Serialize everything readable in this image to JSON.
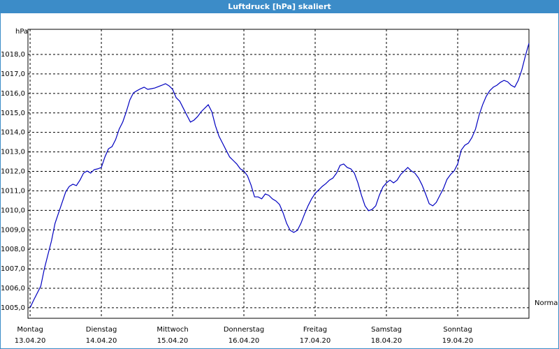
{
  "window_title": "Luftdruck [hPa] skaliert",
  "chart_data": {
    "type": "line",
    "y_label": "hPa",
    "xlim": [
      -0.03,
      7.0
    ],
    "xticks": [
      {
        "value": 0,
        "label": "Montag"
      },
      {
        "value": 1,
        "label": "Dienstag"
      },
      {
        "value": 2,
        "label": "Mittwoch"
      },
      {
        "value": 3,
        "label": "Donnerstag"
      },
      {
        "value": 4,
        "label": "Freitag"
      },
      {
        "value": 5,
        "label": "Samstag"
      },
      {
        "value": 6,
        "label": "Sonntag"
      }
    ],
    "xtick_dates": [
      "13.04.20",
      "14.04.20",
      "15.04.20",
      "16.04.20",
      "17.04.20",
      "18.04.20",
      "19.04.20"
    ],
    "ylim": [
      1004.46,
      1019.29
    ],
    "yticks": [
      {
        "value": 1005,
        "label": "1005,0"
      },
      {
        "value": 1006,
        "label": "1006,0"
      },
      {
        "value": 1007,
        "label": "1007,0"
      },
      {
        "value": 1008,
        "label": "1008,0"
      },
      {
        "value": 1009,
        "label": "1009,0"
      },
      {
        "value": 1010,
        "label": "1010,0"
      },
      {
        "value": 1011,
        "label": "1011,0"
      },
      {
        "value": 1012,
        "label": "1012,0"
      },
      {
        "value": 1013,
        "label": "1013,0"
      },
      {
        "value": 1014,
        "label": "1014,0"
      },
      {
        "value": 1015,
        "label": "1015,0"
      },
      {
        "value": 1016,
        "label": "1016,0"
      },
      {
        "value": 1017,
        "label": "1017,0"
      },
      {
        "value": 1018,
        "label": "1018,0"
      }
    ],
    "grid": true,
    "x": [
      0,
      0.05,
      0.1,
      0.15,
      0.2,
      0.25,
      0.3,
      0.35,
      0.4,
      0.45,
      0.5,
      0.55,
      0.6,
      0.65,
      0.7,
      0.75,
      0.8,
      0.85,
      0.9,
      0.95,
      1.0,
      1.05,
      1.1,
      1.15,
      1.2,
      1.25,
      1.3,
      1.35,
      1.4,
      1.45,
      1.5,
      1.55,
      1.6,
      1.65,
      1.7,
      1.75,
      1.8,
      1.85,
      1.9,
      1.95,
      2.0,
      2.05,
      2.1,
      2.15,
      2.2,
      2.25,
      2.3,
      2.35,
      2.4,
      2.45,
      2.5,
      2.55,
      2.6,
      2.65,
      2.7,
      2.75,
      2.8,
      2.85,
      2.9,
      2.95,
      3.0,
      3.05,
      3.1,
      3.15,
      3.2,
      3.25,
      3.3,
      3.35,
      3.4,
      3.45,
      3.5,
      3.55,
      3.6,
      3.65,
      3.7,
      3.75,
      3.8,
      3.85,
      3.9,
      3.95,
      4.0,
      4.05,
      4.1,
      4.15,
      4.2,
      4.25,
      4.3,
      4.35,
      4.4,
      4.45,
      4.5,
      4.55,
      4.6,
      4.65,
      4.7,
      4.75,
      4.8,
      4.85,
      4.9,
      4.95,
      5.0,
      5.05,
      5.1,
      5.15,
      5.2,
      5.25,
      5.3,
      5.35,
      5.4,
      5.45,
      5.5,
      5.55,
      5.6,
      5.65,
      5.7,
      5.75,
      5.8,
      5.85,
      5.9,
      5.95,
      6.0,
      6.05,
      6.1,
      6.15,
      6.2,
      6.25,
      6.3,
      6.35,
      6.4,
      6.45,
      6.5,
      6.55,
      6.6,
      6.65,
      6.7,
      6.75,
      6.8,
      6.85,
      6.9,
      6.95,
      7.0
    ],
    "series": [
      {
        "name": "Normal",
        "color": "#0000c0",
        "values": [
          1005.0,
          1005.39,
          1005.75,
          1006.11,
          1007.0,
          1007.72,
          1008.43,
          1009.33,
          1009.87,
          1010.41,
          1010.95,
          1011.23,
          1011.34,
          1011.27,
          1011.55,
          1011.91,
          1012.02,
          1011.91,
          1012.09,
          1012.13,
          1012.2,
          1012.74,
          1013.16,
          1013.27,
          1013.63,
          1014.17,
          1014.53,
          1015.06,
          1015.67,
          1016.03,
          1016.14,
          1016.24,
          1016.32,
          1016.21,
          1016.24,
          1016.28,
          1016.35,
          1016.42,
          1016.5,
          1016.39,
          1016.21,
          1015.78,
          1015.6,
          1015.24,
          1014.88,
          1014.53,
          1014.63,
          1014.81,
          1015.06,
          1015.24,
          1015.42,
          1015.06,
          1014.35,
          1013.81,
          1013.45,
          1013.09,
          1012.74,
          1012.56,
          1012.38,
          1012.13,
          1012.02,
          1011.77,
          1011.3,
          1010.69,
          1010.69,
          1010.59,
          1010.84,
          1010.77,
          1010.59,
          1010.48,
          1010.3,
          1009.87,
          1009.33,
          1008.97,
          1008.87,
          1008.97,
          1009.33,
          1009.8,
          1010.23,
          1010.59,
          1010.87,
          1011.05,
          1011.23,
          1011.37,
          1011.55,
          1011.66,
          1011.91,
          1012.31,
          1012.38,
          1012.2,
          1012.13,
          1011.91,
          1011.41,
          1010.77,
          1010.23,
          1009.98,
          1010.05,
          1010.23,
          1010.77,
          1011.19,
          1011.41,
          1011.55,
          1011.41,
          1011.55,
          1011.84,
          1012.02,
          1012.2,
          1012.02,
          1011.91,
          1011.66,
          1011.3,
          1010.84,
          1010.34,
          1010.23,
          1010.41,
          1010.77,
          1011.12,
          1011.59,
          1011.84,
          1012.02,
          1012.38,
          1013.09,
          1013.34,
          1013.45,
          1013.74,
          1014.17,
          1014.88,
          1015.42,
          1015.85,
          1016.14,
          1016.32,
          1016.42,
          1016.57,
          1016.67,
          1016.6,
          1016.42,
          1016.32,
          1016.67,
          1017.21,
          1017.93,
          1018.57
        ]
      }
    ]
  }
}
